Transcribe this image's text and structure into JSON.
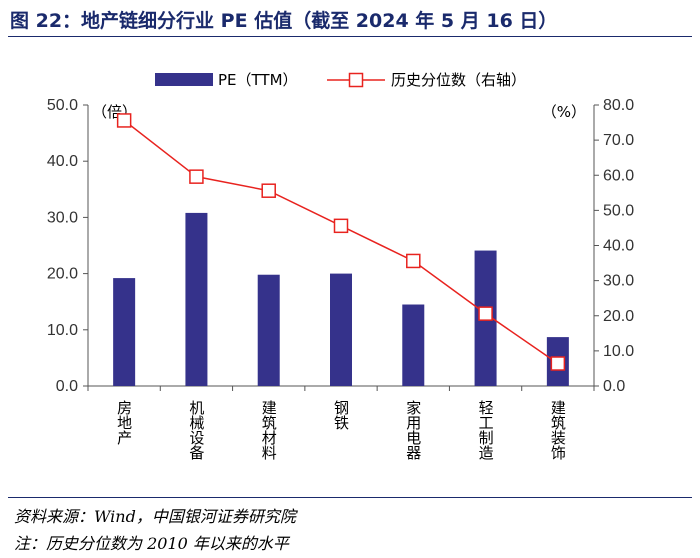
{
  "title": "图 22：地产链细分行业 PE 估值（截至 2024 年 5 月 16 日）",
  "source": "资料来源：Wind，中国银河证券研究院",
  "note": "注：历史分位数为 2010 年以来的水平",
  "colors": {
    "bar": "#35328b",
    "line": "#e8231f",
    "title": "#1a2a6c"
  },
  "chart_data": {
    "type": "bar",
    "categories": [
      "房地产",
      "机械设备",
      "建筑材料",
      "钢铁",
      "家用电器",
      "轻工制造",
      "建筑装饰"
    ],
    "series": [
      {
        "name": "PE（TTM）",
        "type": "bar",
        "axis": "left",
        "values": [
          19.2,
          30.8,
          19.8,
          20.0,
          14.5,
          24.1,
          8.7
        ]
      },
      {
        "name": "历史分位数（右轴）",
        "type": "line",
        "axis": "right",
        "values": [
          75.6,
          59.6,
          55.6,
          45.6,
          35.6,
          20.6,
          6.4
        ]
      }
    ],
    "left_axis": {
      "unit_label": "（倍）",
      "ylim": [
        0,
        50
      ],
      "ticks": [
        "0.0",
        "10.0",
        "20.0",
        "30.0",
        "40.0",
        "50.0"
      ]
    },
    "right_axis": {
      "unit_label": "（%）",
      "ylim": [
        0,
        80
      ],
      "ticks": [
        "0.0",
        "10.0",
        "20.0",
        "30.0",
        "40.0",
        "50.0",
        "60.0",
        "70.0",
        "80.0"
      ]
    },
    "legend_position": "top-center",
    "grid": false
  }
}
